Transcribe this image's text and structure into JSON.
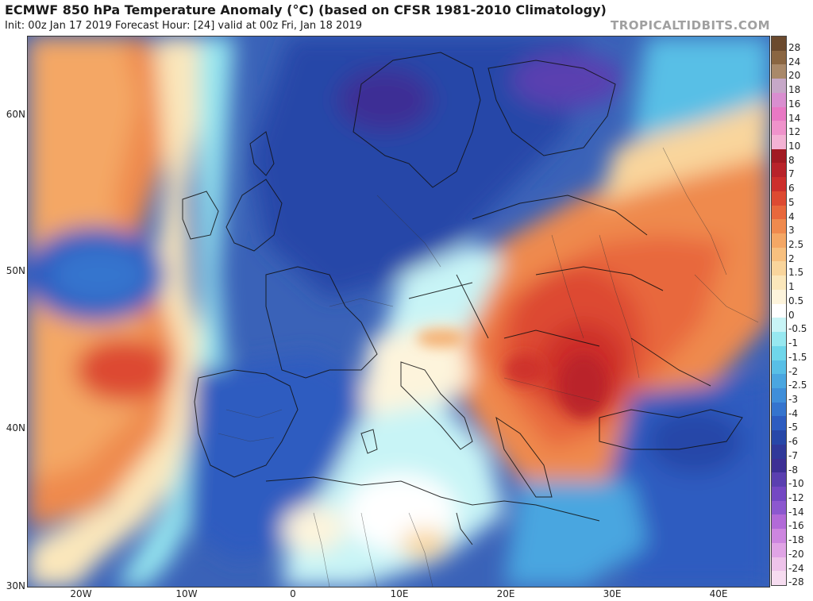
{
  "header": {
    "title": "ECMWF 850 hPa Temperature Anomaly (°C) (based on CFSR 1981-2010 Climatology)",
    "subtitle": "Init: 00z Jan 17 2019   Forecast Hour: [24]   valid at 00z Fri, Jan 18 2019",
    "brand": "TROPICALTIDBITS.COM"
  },
  "map": {
    "lat_labels": [
      "60N",
      "50N",
      "40N",
      "30N"
    ],
    "lon_labels": [
      "20W",
      "10W",
      "0",
      "10E",
      "20E",
      "30E",
      "40E"
    ]
  },
  "colorbar": {
    "labels": [
      "28",
      "24",
      "20",
      "18",
      "16",
      "14",
      "12",
      "10",
      "8",
      "7",
      "6",
      "5",
      "4",
      "3",
      "2.5",
      "2",
      "1.5",
      "1",
      "0.5",
      "0",
      "-0.5",
      "-1",
      "-1.5",
      "-2",
      "-2.5",
      "-3",
      "-4",
      "-5",
      "-6",
      "-7",
      "-8",
      "-10",
      "-12",
      "-14",
      "-16",
      "-18",
      "-20",
      "-24",
      "-28"
    ],
    "colors": [
      "#6b4a2e",
      "#8a6642",
      "#a9896a",
      "#c6a8c8",
      "#d98ed0",
      "#e878c4",
      "#ef93cb",
      "#f3b2d4",
      "#a11a22",
      "#b8232a",
      "#cc2f2c",
      "#dd4a32",
      "#e8683c",
      "#ef8a4e",
      "#f4a765",
      "#f7c07f",
      "#f9d59c",
      "#fbe7bb",
      "#fdf4dc",
      "#ffffff",
      "#c8f4f6",
      "#97e8f0",
      "#6fd6ea",
      "#58bfe6",
      "#4aa6e0",
      "#3f8ed9",
      "#3574ce",
      "#2d5cc0",
      "#2747a8",
      "#30399a",
      "#3d2f95",
      "#5a3fb0",
      "#7448c3",
      "#8c58cf",
      "#b26ad8",
      "#cd86df",
      "#e0a4e5",
      "#eec3ea",
      "#f6dcf0"
    ]
  }
}
